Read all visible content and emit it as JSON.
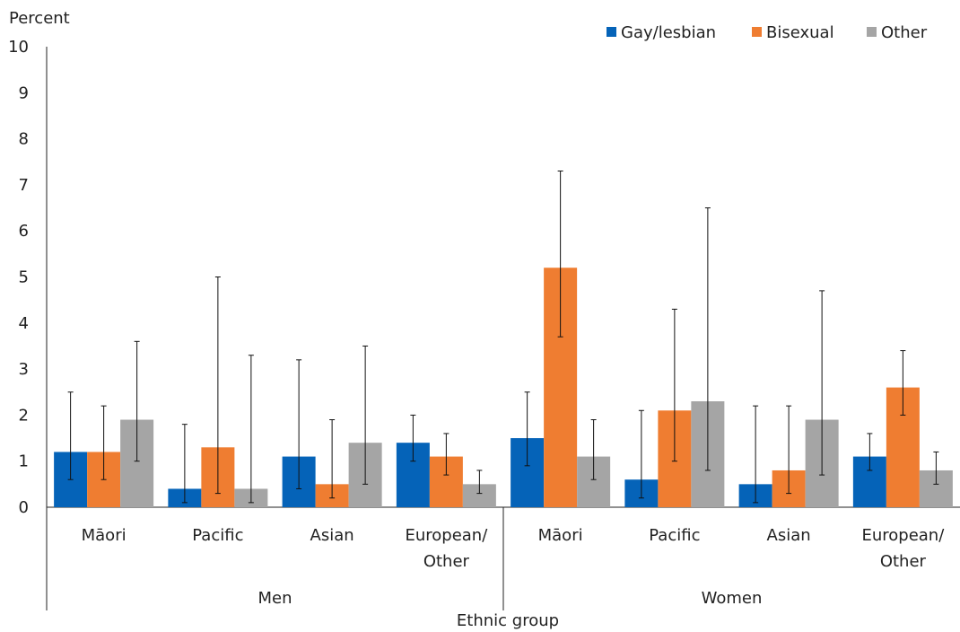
{
  "chart_data": {
    "type": "bar",
    "title": "",
    "ylabel": "Percent",
    "xlabel": "Ethnic group",
    "ylim": [
      0,
      10
    ],
    "yticks": [
      0,
      1,
      2,
      3,
      4,
      5,
      6,
      7,
      8,
      9,
      10
    ],
    "grid": false,
    "legend_position": "top-right",
    "groups": [
      {
        "name": "Men",
        "categories": [
          [
            "Māori"
          ],
          [
            "Pacific"
          ],
          [
            "Asian"
          ],
          [
            "European/",
            "Other"
          ]
        ]
      },
      {
        "name": "Women",
        "categories": [
          [
            "Māori"
          ],
          [
            "Pacific"
          ],
          [
            "Asian"
          ],
          [
            "European/",
            "Other"
          ]
        ]
      }
    ],
    "series": [
      {
        "name": "Gay/lesbian",
        "color": "#0563B8",
        "values": [
          1.2,
          0.4,
          1.1,
          1.4,
          1.5,
          0.6,
          0.5,
          1.1
        ],
        "error_low": [
          0.6,
          0.1,
          0.4,
          1.0,
          0.9,
          0.2,
          0.1,
          0.8
        ],
        "error_high": [
          2.5,
          1.8,
          3.2,
          2.0,
          2.5,
          2.1,
          2.2,
          1.6
        ]
      },
      {
        "name": "Bisexual",
        "color": "#EF7D31",
        "values": [
          1.2,
          1.3,
          0.5,
          1.1,
          5.2,
          2.1,
          0.8,
          2.6
        ],
        "error_low": [
          0.6,
          0.3,
          0.2,
          0.7,
          3.7,
          1.0,
          0.3,
          2.0
        ],
        "error_high": [
          2.2,
          5.0,
          1.9,
          1.6,
          7.3,
          4.3,
          2.2,
          3.4
        ]
      },
      {
        "name": "Other",
        "color": "#A5A5A5",
        "values": [
          1.9,
          0.4,
          1.4,
          0.5,
          1.1,
          2.3,
          1.9,
          0.8
        ],
        "error_low": [
          1.0,
          0.1,
          0.5,
          0.3,
          0.6,
          0.8,
          0.7,
          0.5
        ],
        "error_high": [
          3.6,
          3.3,
          3.5,
          0.8,
          1.9,
          6.5,
          4.7,
          1.2
        ]
      }
    ]
  }
}
